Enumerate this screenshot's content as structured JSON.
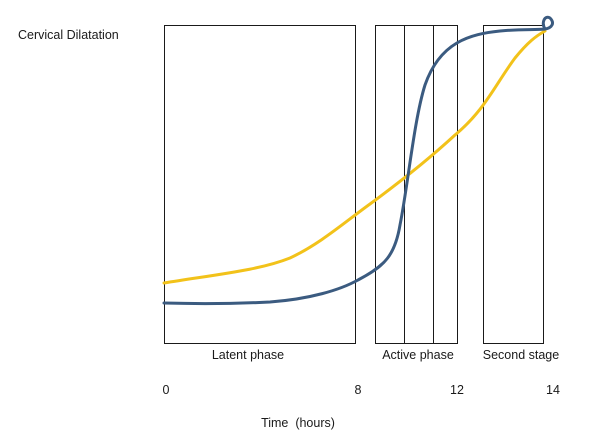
{
  "title": "Cervical Dilatation",
  "xlabel": "Time  (hours)",
  "phases": [
    {
      "label": "Latent phase"
    },
    {
      "label": "Active phase"
    },
    {
      "label": "Second stage"
    }
  ],
  "ticks": [
    {
      "label": "0",
      "value": 0
    },
    {
      "label": "8",
      "value": 8
    },
    {
      "label": "12",
      "value": 12
    },
    {
      "label": "14",
      "value": 14
    }
  ],
  "curves": [
    {
      "color": "#3b5b80"
    },
    {
      "color": "#f2c21a"
    }
  ]
}
